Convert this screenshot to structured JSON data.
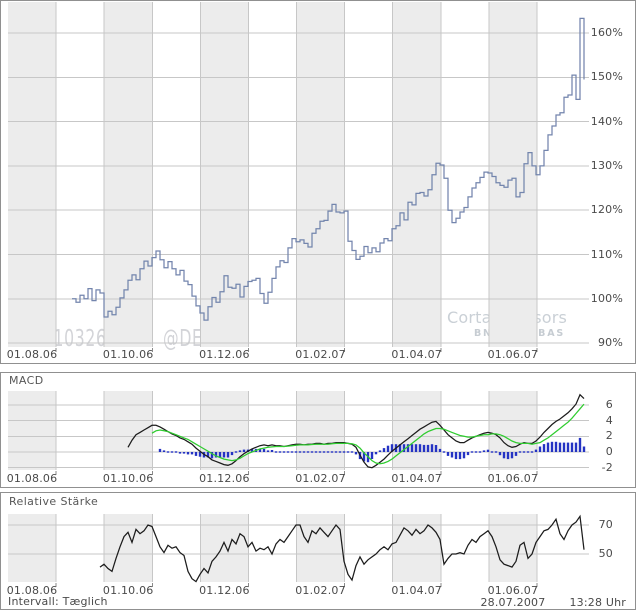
{
  "watermark": {
    "isin": "FR0010326256",
    "suffix": "@DE"
  },
  "brand": {
    "name": "Cortal Consors",
    "sub": "BNP PARIBAS"
  },
  "status_bar": {
    "interval_label": "Intervall: Tæglich",
    "date": "28.07.2007",
    "time": "13:28 Uhr"
  },
  "colors": {
    "band": "#ececec",
    "grid": "#c7c7c7",
    "tick": "#8a8a8a",
    "border": "#909090",
    "price_line": "#7385ad",
    "macd_line": "#1c1c1c",
    "signal_line": "#2fcc2f",
    "histogram": "#2433c3",
    "rs_line": "#1c1c1c",
    "label_text": "#4a4a4a",
    "watermark_text": "#d3d4d8",
    "brand_text": "#cad0d6"
  },
  "x_axis": {
    "labels": [
      "01.08.06",
      "01.10.06",
      "01.12.06",
      "01.02.07",
      "01.04.07",
      "01.06.07"
    ],
    "label_month_centers": [
      0.5,
      2.5,
      4.5,
      6.5,
      8.5,
      10.5
    ],
    "tick_months": [
      1,
      3,
      5,
      7,
      9,
      11
    ],
    "months_total": 12
  },
  "chart_data": [
    {
      "id": "price",
      "type": "line",
      "line_style": "step",
      "title": "",
      "unit": "%",
      "yticks": [
        160,
        150,
        140,
        130,
        120,
        110,
        100,
        90
      ],
      "ylim": [
        89,
        167
      ],
      "grid": true,
      "legend": "none",
      "series": [
        {
          "name": "price_percent",
          "color_ref": "price_line",
          "x0_month": 1.331,
          "dx_month": 0.08319,
          "values": [
            100.0,
            99.2,
            100.8,
            100.0,
            102.3,
            99.6,
            102.0,
            101.3,
            95.9,
            97.2,
            96.4,
            98.1,
            100.2,
            102.0,
            104.2,
            105.4,
            104.3,
            106.8,
            108.5,
            107.4,
            109.3,
            110.8,
            108.8,
            107.0,
            108.4,
            106.8,
            105.4,
            106.4,
            104.0,
            103.2,
            100.6,
            98.4,
            96.8,
            95.2,
            98.2,
            100.3,
            99.2,
            101.6,
            105.2,
            102.6,
            102.4,
            103.3,
            100.4,
            102.8,
            103.9,
            104.2,
            104.6,
            101.2,
            99.0,
            101.5,
            104.6,
            107.2,
            108.6,
            108.2,
            111.5,
            113.6,
            112.9,
            113.3,
            112.5,
            111.7,
            114.8,
            115.8,
            117.5,
            117.7,
            119.8,
            121.3,
            119.6,
            119.4,
            119.8,
            113.0,
            110.9,
            108.9,
            109.6,
            111.8,
            110.4,
            111.5,
            110.6,
            112.6,
            113.6,
            113.1,
            115.8,
            116.5,
            119.4,
            117.8,
            121.8,
            121.2,
            123.8,
            124.0,
            123.2,
            124.6,
            128.0,
            130.6,
            130.2,
            127.2,
            120.0,
            117.2,
            118.2,
            119.6,
            120.6,
            123.0,
            125.0,
            126.2,
            127.4,
            128.6,
            128.4,
            127.6,
            126.2,
            125.6,
            125.2,
            126.8,
            127.2,
            123.0,
            124.0,
            130.5,
            133.0,
            130.0,
            128.0,
            130.0,
            133.5,
            137.0,
            139.0,
            141.5,
            142.0,
            145.5,
            146.0,
            150.5,
            145.0,
            163.3,
            149.5
          ]
        }
      ]
    },
    {
      "id": "macd",
      "type": "line+bar",
      "title": "MACD",
      "yticks": [
        6,
        4,
        2,
        0,
        -2
      ],
      "ylim": [
        -2.3,
        7.8
      ],
      "grid": true,
      "series": [
        {
          "name": "macd",
          "color_ref": "macd_line",
          "x0_month": 2.496,
          "dx_month": 0.08319,
          "values": [
            0.6,
            1.5,
            2.2,
            2.5,
            2.8,
            3.1,
            3.4,
            3.4,
            3.2,
            2.9,
            2.6,
            2.3,
            2.1,
            1.8,
            1.6,
            1.3,
            1.0,
            0.5,
            0.1,
            -0.3,
            -0.6,
            -1.0,
            -1.2,
            -1.4,
            -1.6,
            -1.7,
            -1.5,
            -1.1,
            -0.6,
            -0.2,
            0.1,
            0.4,
            0.6,
            0.8,
            0.9,
            0.8,
            0.9,
            0.8,
            0.8,
            0.7,
            0.8,
            0.9,
            1.0,
            1.0,
            0.9,
            1.0,
            1.0,
            1.1,
            1.1,
            1.0,
            1.1,
            1.1,
            1.2,
            1.2,
            1.2,
            1.1,
            1.0,
            0.6,
            -0.4,
            -1.3,
            -1.9,
            -2.0,
            -1.7,
            -1.3,
            -0.9,
            -0.4,
            0.1,
            0.5,
            0.9,
            1.3,
            1.7,
            2.1,
            2.5,
            2.9,
            3.2,
            3.5,
            3.8,
            3.9,
            3.4,
            2.8,
            2.2,
            1.8,
            1.4,
            1.2,
            1.2,
            1.5,
            1.8,
            2.0,
            2.2,
            2.4,
            2.5,
            2.4,
            2.2,
            1.8,
            1.2,
            0.8,
            0.6,
            0.7,
            1.0,
            1.2,
            1.1,
            1.1,
            1.4,
            1.9,
            2.5,
            3.0,
            3.5,
            3.9,
            4.2,
            4.6,
            5.0,
            5.5,
            6.1,
            7.3,
            6.8
          ]
        },
        {
          "name": "signal",
          "color_ref": "signal_line",
          "x0_month": 2.995,
          "dx_month": 0.08319,
          "values": [
            2.4,
            2.7,
            2.8,
            2.7,
            2.6,
            2.4,
            2.2,
            2.0,
            1.8,
            1.6,
            1.3,
            1.0,
            0.7,
            0.4,
            0.1,
            -0.2,
            -0.5,
            -0.7,
            -0.9,
            -1.0,
            -1.1,
            -1.0,
            -0.8,
            -0.5,
            -0.2,
            0.0,
            0.2,
            0.4,
            0.5,
            0.6,
            0.65,
            0.7,
            0.7,
            0.7,
            0.75,
            0.8,
            0.85,
            0.9,
            0.9,
            0.9,
            0.95,
            1.0,
            1.0,
            1.0,
            1.0,
            1.05,
            1.1,
            1.1,
            1.1,
            1.1,
            1.05,
            0.9,
            0.5,
            -0.1,
            -0.6,
            -1.1,
            -1.4,
            -1.5,
            -1.4,
            -1.2,
            -0.9,
            -0.5,
            -0.1,
            0.3,
            0.7,
            1.1,
            1.5,
            1.9,
            2.3,
            2.6,
            2.8,
            3.0,
            3.0,
            2.9,
            2.7,
            2.5,
            2.3,
            2.1,
            2.0,
            1.9,
            1.9,
            2.0,
            2.1,
            2.2,
            2.2,
            2.3,
            2.3,
            2.2,
            2.0,
            1.7,
            1.4,
            1.2,
            1.1,
            1.1,
            1.1,
            1.0,
            1.1,
            1.2,
            1.5,
            1.8,
            2.2,
            2.6,
            3.0,
            3.4,
            3.8,
            4.3,
            4.9,
            5.5,
            6.1
          ]
        }
      ],
      "histogram": {
        "name": "macd_minus_signal",
        "color_ref": "histogram",
        "x0_month": 3.162,
        "dx_month": 0.08319,
        "derive": [
          "macd",
          "signal"
        ]
      }
    },
    {
      "id": "relative_strength",
      "type": "line",
      "title": "Relative Stärke",
      "yticks": [
        70,
        50
      ],
      "ylim": [
        31,
        78
      ],
      "grid": true,
      "series": [
        {
          "name": "relative_staerke",
          "color_ref": "rs_line",
          "x0_month": 1.913,
          "dx_month": 0.08319,
          "values": [
            41,
            43,
            40,
            38,
            47,
            55,
            62,
            65,
            58,
            67,
            64,
            66,
            70,
            69,
            62,
            55,
            51,
            56,
            54,
            55,
            51,
            49,
            38,
            33,
            31,
            36,
            40,
            37,
            45,
            48,
            52,
            58,
            52,
            60,
            57,
            64,
            62,
            55,
            58,
            52,
            54,
            53,
            55,
            50,
            57,
            60,
            58,
            62,
            66,
            70,
            70,
            62,
            58,
            66,
            64,
            68,
            65,
            62,
            66,
            70,
            67,
            45,
            36,
            32,
            42,
            48,
            43,
            46,
            48,
            50,
            53,
            55,
            53,
            57,
            58,
            63,
            68,
            66,
            63,
            67,
            64,
            66,
            70,
            68,
            65,
            60,
            43,
            47,
            50,
            50,
            51,
            50,
            56,
            60,
            58,
            62,
            64,
            66,
            62,
            55,
            46,
            43,
            42,
            41,
            45,
            56,
            58,
            47,
            50,
            58,
            62,
            66,
            67,
            70,
            74,
            64,
            60,
            66,
            70,
            72,
            76,
            53
          ]
        }
      ]
    }
  ]
}
